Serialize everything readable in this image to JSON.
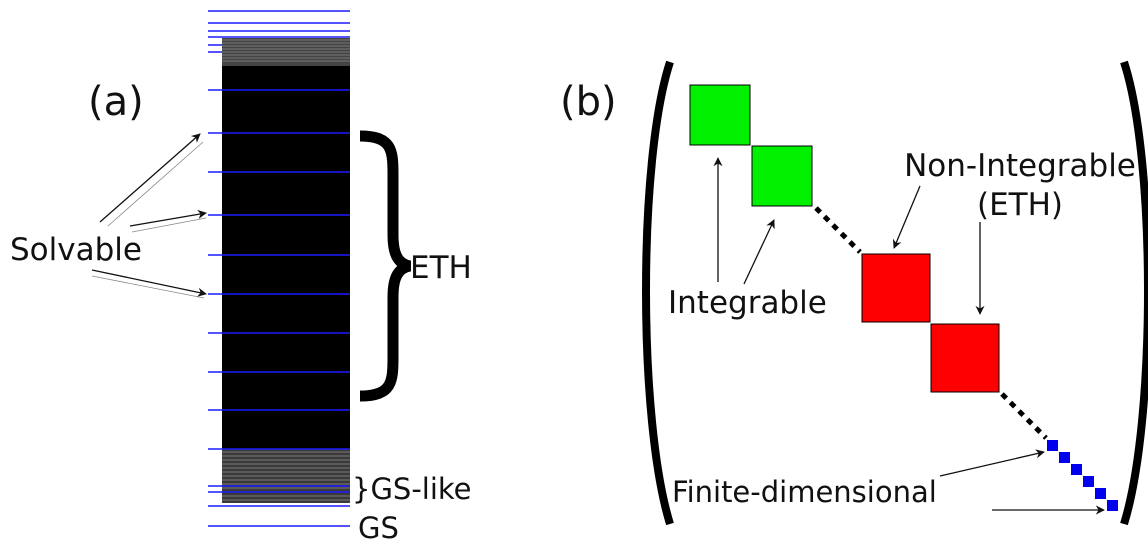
{
  "panel_a": {
    "label": "(a)",
    "solvable": "Solvable",
    "eth": "ETH",
    "gs_like": "}GS-like",
    "gs": "GS"
  },
  "panel_b": {
    "label": "(b)",
    "non_integrable_line1": "Non-Integrable",
    "non_integrable_line2": "(ETH)",
    "integrable": "Integrable",
    "finite_dimensional": "Finite-dimensional"
  },
  "colors": {
    "level_line": "#1a1aff",
    "black_band": "#000000",
    "integrable_block": "#00f000",
    "non_integrable_block": "#ff0000",
    "finite_block": "#0000ee"
  }
}
